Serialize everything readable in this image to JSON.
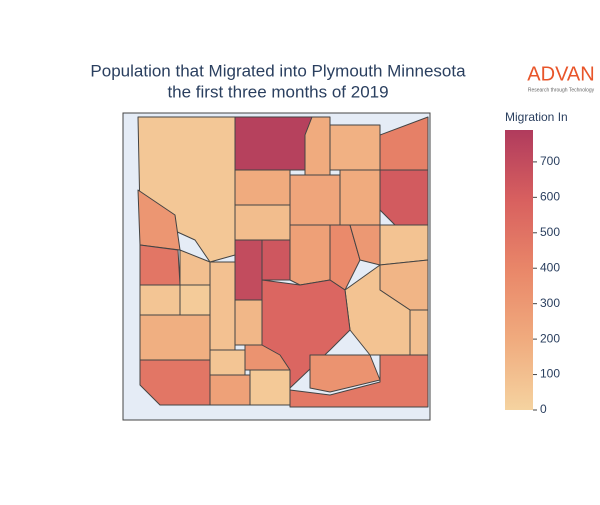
{
  "chart_data": {
    "type": "choropleth",
    "title": [
      "Population that Migrated into Plymouth Minnesota",
      "the first three months of 2019"
    ],
    "logo": {
      "name": "ADVAN",
      "tagline": "Research through Technology"
    },
    "colorbar_title": "Migration In",
    "zlim": [
      0,
      790
    ],
    "zticks": [
      0,
      100,
      200,
      300,
      400,
      500,
      600,
      700
    ],
    "colorscale": [
      "#f5d3a0",
      "#f0ab7e",
      "#e98769",
      "#d8605f",
      "#b03b5d"
    ],
    "values": [
      60,
      760,
      200,
      170,
      430,
      620,
      310,
      480,
      100,
      700,
      640,
      200,
      110,
      230,
      200,
      260,
      380,
      300,
      80,
      150,
      80,
      560,
      70,
      180,
      40,
      90,
      140,
      330,
      480,
      250,
      70,
      50,
      330,
      470,
      100
    ]
  }
}
